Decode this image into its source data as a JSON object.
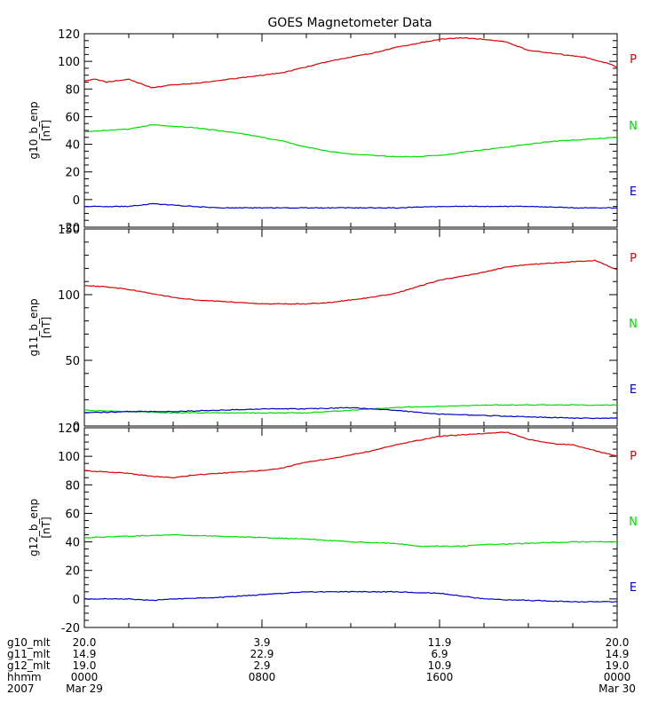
{
  "title": "GOES Magnetometer Data",
  "colors": {
    "P": "#dd0000",
    "N": "#00dd00",
    "E": "#0000cc",
    "axis": "#000000"
  },
  "chart_data": [
    {
      "type": "line",
      "ylabel": "g10_b_enp",
      "yunit": "[nT]",
      "ylim": [
        -20,
        120
      ],
      "yticks": [
        -20,
        0,
        20,
        40,
        60,
        80,
        100,
        120
      ],
      "minor_per_major": 4,
      "xlim": [
        0,
        24
      ],
      "legend": [
        "P",
        "N",
        "E"
      ],
      "series": [
        {
          "name": "P",
          "x": [
            0,
            0.5,
            1,
            1.5,
            2,
            2.5,
            3,
            3.5,
            4,
            5,
            6,
            7,
            8,
            9,
            10,
            11,
            12,
            13,
            14,
            15,
            16,
            17,
            18,
            19,
            20,
            21,
            22,
            22.5,
            23,
            23.5,
            24
          ],
          "values": [
            86,
            87,
            85,
            86,
            87,
            84,
            81,
            82,
            83,
            84,
            86,
            88,
            90,
            92,
            96,
            100,
            103,
            106,
            110,
            113,
            116,
            117,
            116,
            114,
            108,
            106,
            104,
            103,
            101,
            99,
            96
          ]
        },
        {
          "name": "N",
          "x": [
            0,
            1,
            2,
            3,
            4,
            5,
            6,
            7,
            8,
            9,
            10,
            11,
            12,
            13,
            14,
            15,
            16,
            17,
            18,
            19,
            20,
            21,
            22,
            23,
            24
          ],
          "values": [
            49,
            50,
            51,
            54,
            53,
            52,
            50,
            48,
            45,
            42,
            38,
            35,
            33,
            32,
            31,
            31,
            32,
            34,
            36,
            38,
            40,
            42,
            43,
            44,
            45
          ]
        },
        {
          "name": "E",
          "x": [
            0,
            2,
            3,
            4,
            6,
            8,
            10,
            12,
            14,
            16,
            18,
            20,
            22,
            24
          ],
          "values": [
            -5,
            -5,
            -3,
            -4,
            -6,
            -6,
            -6,
            -6,
            -6,
            -5,
            -5,
            -5,
            -6,
            -6
          ]
        }
      ]
    },
    {
      "type": "line",
      "ylabel": "g11_b_enp",
      "yunit": "[nT]",
      "ylim": [
        0,
        150
      ],
      "yticks": [
        0,
        50,
        100,
        150
      ],
      "minor_per_major": 5,
      "xlim": [
        0,
        24
      ],
      "legend": [
        "P",
        "N",
        "E"
      ],
      "series": [
        {
          "name": "P",
          "x": [
            0,
            1,
            2,
            3,
            4,
            5,
            6,
            7,
            8,
            9,
            10,
            11,
            12,
            13,
            14,
            15,
            16,
            17,
            18,
            19,
            20,
            21,
            22,
            23,
            24
          ],
          "values": [
            107,
            106,
            104,
            101,
            98,
            96,
            95,
            94,
            93,
            93,
            93,
            94,
            96,
            98,
            101,
            106,
            111,
            114,
            117,
            121,
            123,
            124,
            125,
            126,
            119
          ]
        },
        {
          "name": "N",
          "x": [
            0,
            2,
            4,
            6,
            8,
            10,
            12,
            14,
            16,
            18,
            20,
            22,
            24
          ],
          "values": [
            12,
            11,
            10,
            10,
            10,
            10,
            12,
            14,
            15,
            16,
            16,
            16,
            16
          ]
        },
        {
          "name": "E",
          "x": [
            0,
            2,
            4,
            6,
            8,
            10,
            12,
            14,
            16,
            18,
            20,
            22,
            24
          ],
          "values": [
            10,
            11,
            11,
            12,
            13,
            13,
            14,
            12,
            9,
            8,
            7,
            6,
            6
          ]
        }
      ]
    },
    {
      "type": "line",
      "ylabel": "g12_b_enp",
      "yunit": "[nT]",
      "ylim": [
        -20,
        120
      ],
      "yticks": [
        -20,
        0,
        20,
        40,
        60,
        80,
        100,
        120
      ],
      "minor_per_major": 4,
      "xlim": [
        0,
        24
      ],
      "legend": [
        "P",
        "N",
        "E"
      ],
      "series": [
        {
          "name": "P",
          "x": [
            0,
            1,
            2,
            3,
            4,
            5,
            6,
            7,
            8,
            9,
            10,
            11,
            12,
            13,
            14,
            15,
            16,
            17,
            18,
            19,
            20,
            21,
            22,
            23,
            24
          ],
          "values": [
            90,
            89,
            88,
            86,
            85,
            87,
            88,
            89,
            90,
            92,
            96,
            98,
            101,
            104,
            108,
            111,
            114,
            115,
            116,
            117,
            112,
            109,
            108,
            104,
            100
          ]
        },
        {
          "name": "N",
          "x": [
            0,
            2,
            4,
            6,
            8,
            10,
            12,
            14,
            15,
            16,
            17,
            18,
            20,
            22,
            24
          ],
          "values": [
            43,
            44,
            45,
            44,
            43,
            42,
            40,
            39,
            37,
            37,
            37,
            38,
            39,
            40,
            40
          ]
        },
        {
          "name": "E",
          "x": [
            0,
            2,
            3,
            4,
            6,
            8,
            10,
            12,
            14,
            16,
            17,
            18,
            20,
            22,
            24
          ],
          "values": [
            0,
            0,
            -1,
            0,
            1,
            3,
            5,
            5,
            5,
            4,
            2,
            0,
            -1,
            -2,
            -2
          ]
        }
      ]
    }
  ],
  "x_axis_rows": [
    {
      "label": "g10_mlt",
      "values": [
        "20.0",
        "3.9",
        "11.9",
        "20.0"
      ]
    },
    {
      "label": "g11_mlt",
      "values": [
        "14.9",
        "22.9",
        "6.9",
        "14.9"
      ]
    },
    {
      "label": "g12_mlt",
      "values": [
        "19.0",
        "2.9",
        "10.9",
        "19.0"
      ]
    },
    {
      "label": "hhmm",
      "values": [
        "0000",
        "0800",
        "1600",
        "0000"
      ]
    },
    {
      "label": "2007",
      "values": [
        "Mar 29",
        "",
        "",
        "Mar 30"
      ]
    }
  ]
}
